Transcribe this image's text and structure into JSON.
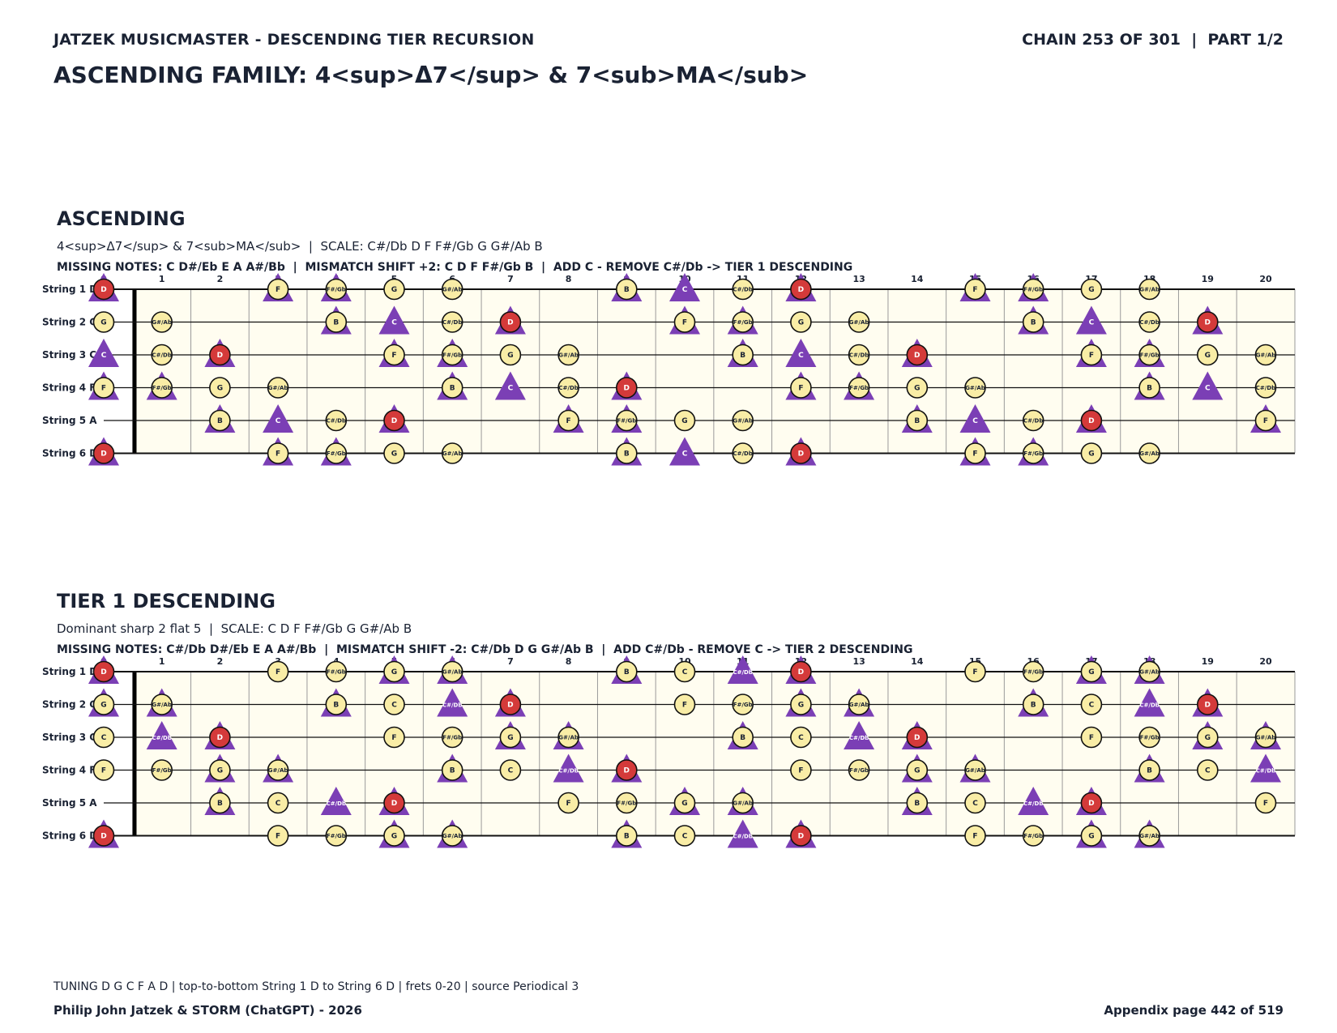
{
  "header": {
    "left": "JATZEK MUSICMASTER - DESCENDING TIER RECURSION",
    "right": "CHAIN 253 OF 301  |  PART 1/2",
    "title": "ASCENDING FAMILY: 4<sup>Δ7</sup> & 7<sub>MA</sub>"
  },
  "legend_colors": {
    "scale_note": "#f9eda6",
    "root_d": "#d43a3a",
    "triangle": "#7b3fb5",
    "board_bg": "#fffdf0"
  },
  "fret_numbers": [
    "0",
    "1",
    "2",
    "3",
    "4",
    "5",
    "6",
    "7",
    "8",
    "9",
    "10",
    "11",
    "12",
    "13",
    "14",
    "15",
    "16",
    "17",
    "18",
    "19",
    "20"
  ],
  "sections": [
    {
      "title": "ASCENDING",
      "subtitle": "4<sup>Δ7</sup> & 7<sub>MA</sub>  |  SCALE: C#/Db D F F#/Gb G G#/Ab B",
      "missing": "MISSING NOTES: C D#/Eb E A A#/Bb  |  MISMATCH SHIFT +2: C D F F#/Gb B  |  ADD C - REMOVE C#/Db -> TIER 1 DESCENDING",
      "strings": [
        {
          "label": "String 1 D",
          "notes": [
            [
              "0",
              "D",
              "Y"
            ],
            [
              "3",
              "F",
              "Y"
            ],
            [
              "4",
              "F#/Gb",
              "Y"
            ],
            [
              "5",
              "G",
              ""
            ],
            [
              "6",
              "G#/Ab",
              ""
            ],
            [
              "9",
              "B",
              "Y"
            ],
            [
              "10",
              "C",
              "T"
            ],
            [
              "11",
              "C#/Db",
              ""
            ],
            [
              "12",
              "D",
              "Y"
            ],
            [
              "15",
              "F",
              "Y"
            ],
            [
              "16",
              "F#/Gb",
              "Y"
            ],
            [
              "17",
              "G",
              ""
            ],
            [
              "18",
              "G#/Ab",
              ""
            ]
          ]
        },
        {
          "label": "String 2 G",
          "notes": [
            [
              "0",
              "G",
              ""
            ],
            [
              "1",
              "G#/Ab",
              ""
            ],
            [
              "4",
              "B",
              "Y"
            ],
            [
              "5",
              "C",
              "T"
            ],
            [
              "6",
              "C#/Db",
              ""
            ],
            [
              "7",
              "D",
              "Y"
            ],
            [
              "10",
              "F",
              "Y"
            ],
            [
              "11",
              "F#/Gb",
              "Y"
            ],
            [
              "12",
              "G",
              ""
            ],
            [
              "13",
              "G#/Ab",
              ""
            ],
            [
              "16",
              "B",
              "Y"
            ],
            [
              "17",
              "C",
              "T"
            ],
            [
              "18",
              "C#/Db",
              ""
            ],
            [
              "19",
              "D",
              "Y"
            ]
          ]
        },
        {
          "label": "String 3 C",
          "notes": [
            [
              "0",
              "C",
              "T"
            ],
            [
              "1",
              "C#/Db",
              ""
            ],
            [
              "2",
              "D",
              "Y"
            ],
            [
              "5",
              "F",
              "Y"
            ],
            [
              "6",
              "F#/Gb",
              "Y"
            ],
            [
              "7",
              "G",
              ""
            ],
            [
              "8",
              "G#/Ab",
              ""
            ],
            [
              "11",
              "B",
              "Y"
            ],
            [
              "12",
              "C",
              "T"
            ],
            [
              "13",
              "C#/Db",
              ""
            ],
            [
              "14",
              "D",
              "Y"
            ],
            [
              "17",
              "F",
              "Y"
            ],
            [
              "18",
              "F#/Gb",
              "Y"
            ],
            [
              "19",
              "G",
              ""
            ],
            [
              "20",
              "G#/Ab",
              ""
            ]
          ]
        },
        {
          "label": "String 4 F",
          "notes": [
            [
              "0",
              "F",
              "Y"
            ],
            [
              "1",
              "F#/Gb",
              "Y"
            ],
            [
              "2",
              "G",
              ""
            ],
            [
              "3",
              "G#/Ab",
              ""
            ],
            [
              "6",
              "B",
              "Y"
            ],
            [
              "7",
              "C",
              "T"
            ],
            [
              "8",
              "C#/Db",
              ""
            ],
            [
              "9",
              "D",
              "Y"
            ],
            [
              "12",
              "F",
              "Y"
            ],
            [
              "13",
              "F#/Gb",
              "Y"
            ],
            [
              "14",
              "G",
              ""
            ],
            [
              "15",
              "G#/Ab",
              ""
            ],
            [
              "18",
              "B",
              "Y"
            ],
            [
              "19",
              "C",
              "T"
            ],
            [
              "20",
              "C#/Db",
              ""
            ]
          ]
        },
        {
          "label": "String 5 A",
          "notes": [
            [
              "2",
              "B",
              "Y"
            ],
            [
              "3",
              "C",
              "T"
            ],
            [
              "4",
              "C#/Db",
              ""
            ],
            [
              "5",
              "D",
              "Y"
            ],
            [
              "8",
              "F",
              "Y"
            ],
            [
              "9",
              "F#/Gb",
              "Y"
            ],
            [
              "10",
              "G",
              ""
            ],
            [
              "11",
              "G#/Ab",
              ""
            ],
            [
              "14",
              "B",
              "Y"
            ],
            [
              "15",
              "C",
              "T"
            ],
            [
              "16",
              "C#/Db",
              ""
            ],
            [
              "17",
              "D",
              "Y"
            ],
            [
              "20",
              "F",
              "Y"
            ]
          ]
        },
        {
          "label": "String 6 D",
          "notes": [
            [
              "0",
              "D",
              "Y"
            ],
            [
              "3",
              "F",
              "Y"
            ],
            [
              "4",
              "F#/Gb",
              "Y"
            ],
            [
              "5",
              "G",
              ""
            ],
            [
              "6",
              "G#/Ab",
              ""
            ],
            [
              "9",
              "B",
              "Y"
            ],
            [
              "10",
              "C",
              "T"
            ],
            [
              "11",
              "C#/Db",
              ""
            ],
            [
              "12",
              "D",
              "Y"
            ],
            [
              "15",
              "F",
              "Y"
            ],
            [
              "16",
              "F#/Gb",
              "Y"
            ],
            [
              "17",
              "G",
              ""
            ],
            [
              "18",
              "G#/Ab",
              ""
            ]
          ]
        }
      ]
    },
    {
      "title": "TIER 1 DESCENDING",
      "subtitle": "Dominant sharp 2 flat 5  |  SCALE: C D F F#/Gb G G#/Ab B",
      "missing": "MISSING NOTES: C#/Db D#/Eb E A A#/Bb  |  MISMATCH SHIFT -2: C#/Db D G G#/Ab B  |  ADD C#/Db - REMOVE C -> TIER 2 DESCENDING",
      "strings": [
        {
          "label": "String 1 D",
          "notes": [
            [
              "0",
              "D",
              "Y"
            ],
            [
              "3",
              "F",
              ""
            ],
            [
              "4",
              "F#/Gb",
              ""
            ],
            [
              "5",
              "G",
              "Y"
            ],
            [
              "6",
              "G#/Ab",
              "Y"
            ],
            [
              "9",
              "B",
              "Y"
            ],
            [
              "10",
              "C",
              ""
            ],
            [
              "11",
              "C#/Db",
              "T"
            ],
            [
              "12",
              "D",
              "Y"
            ],
            [
              "15",
              "F",
              ""
            ],
            [
              "16",
              "F#/Gb",
              ""
            ],
            [
              "17",
              "G",
              "Y"
            ],
            [
              "18",
              "G#/Ab",
              "Y"
            ]
          ]
        },
        {
          "label": "String 2 G",
          "notes": [
            [
              "0",
              "G",
              "Y"
            ],
            [
              "1",
              "G#/Ab",
              "Y"
            ],
            [
              "4",
              "B",
              "Y"
            ],
            [
              "5",
              "C",
              ""
            ],
            [
              "6",
              "C#/Db",
              "T"
            ],
            [
              "7",
              "D",
              "Y"
            ],
            [
              "10",
              "F",
              ""
            ],
            [
              "11",
              "F#/Gb",
              ""
            ],
            [
              "12",
              "G",
              "Y"
            ],
            [
              "13",
              "G#/Ab",
              "Y"
            ],
            [
              "16",
              "B",
              "Y"
            ],
            [
              "17",
              "C",
              ""
            ],
            [
              "18",
              "C#/Db",
              "T"
            ],
            [
              "19",
              "D",
              "Y"
            ]
          ]
        },
        {
          "label": "String 3 C",
          "notes": [
            [
              "0",
              "C",
              ""
            ],
            [
              "1",
              "C#/Db",
              "T"
            ],
            [
              "2",
              "D",
              "Y"
            ],
            [
              "5",
              "F",
              ""
            ],
            [
              "6",
              "F#/Gb",
              ""
            ],
            [
              "7",
              "G",
              "Y"
            ],
            [
              "8",
              "G#/Ab",
              "Y"
            ],
            [
              "11",
              "B",
              "Y"
            ],
            [
              "12",
              "C",
              ""
            ],
            [
              "13",
              "C#/Db",
              "T"
            ],
            [
              "14",
              "D",
              "Y"
            ],
            [
              "17",
              "F",
              ""
            ],
            [
              "18",
              "F#/Gb",
              ""
            ],
            [
              "19",
              "G",
              "Y"
            ],
            [
              "20",
              "G#/Ab",
              "Y"
            ]
          ]
        },
        {
          "label": "String 4 F",
          "notes": [
            [
              "0",
              "F",
              ""
            ],
            [
              "1",
              "F#/Gb",
              ""
            ],
            [
              "2",
              "G",
              "Y"
            ],
            [
              "3",
              "G#/Ab",
              "Y"
            ],
            [
              "6",
              "B",
              "Y"
            ],
            [
              "7",
              "C",
              ""
            ],
            [
              "8",
              "C#/Db",
              "T"
            ],
            [
              "9",
              "D",
              "Y"
            ],
            [
              "12",
              "F",
              ""
            ],
            [
              "13",
              "F#/Gb",
              ""
            ],
            [
              "14",
              "G",
              "Y"
            ],
            [
              "15",
              "G#/Ab",
              "Y"
            ],
            [
              "18",
              "B",
              "Y"
            ],
            [
              "19",
              "C",
              ""
            ],
            [
              "20",
              "C#/Db",
              "T"
            ]
          ]
        },
        {
          "label": "String 5 A",
          "notes": [
            [
              "2",
              "B",
              "Y"
            ],
            [
              "3",
              "C",
              ""
            ],
            [
              "4",
              "C#/Db",
              "T"
            ],
            [
              "5",
              "D",
              "Y"
            ],
            [
              "8",
              "F",
              ""
            ],
            [
              "9",
              "F#/Gb",
              ""
            ],
            [
              "10",
              "G",
              "Y"
            ],
            [
              "11",
              "G#/Ab",
              "Y"
            ],
            [
              "14",
              "B",
              "Y"
            ],
            [
              "15",
              "C",
              ""
            ],
            [
              "16",
              "C#/Db",
              "T"
            ],
            [
              "17",
              "D",
              "Y"
            ],
            [
              "20",
              "F",
              ""
            ]
          ]
        },
        {
          "label": "String 6 D",
          "notes": [
            [
              "0",
              "D",
              "Y"
            ],
            [
              "3",
              "F",
              ""
            ],
            [
              "4",
              "F#/Gb",
              ""
            ],
            [
              "5",
              "G",
              "Y"
            ],
            [
              "6",
              "G#/Ab",
              "Y"
            ],
            [
              "9",
              "B",
              "Y"
            ],
            [
              "10",
              "C",
              ""
            ],
            [
              "11",
              "C#/Db",
              "T"
            ],
            [
              "12",
              "D",
              "Y"
            ],
            [
              "15",
              "F",
              ""
            ],
            [
              "16",
              "F#/Gb",
              ""
            ],
            [
              "17",
              "G",
              "Y"
            ],
            [
              "18",
              "G#/Ab",
              "Y"
            ]
          ]
        }
      ]
    }
  ],
  "footer": {
    "note": "TUNING D G C F A D | top-to-bottom String 1 D to String 6 D | frets 0-20 | source Periodical 3",
    "left": "Philip John Jatzek & STORM (ChatGPT) - 2026",
    "right": "Appendix page 442 of 519"
  }
}
